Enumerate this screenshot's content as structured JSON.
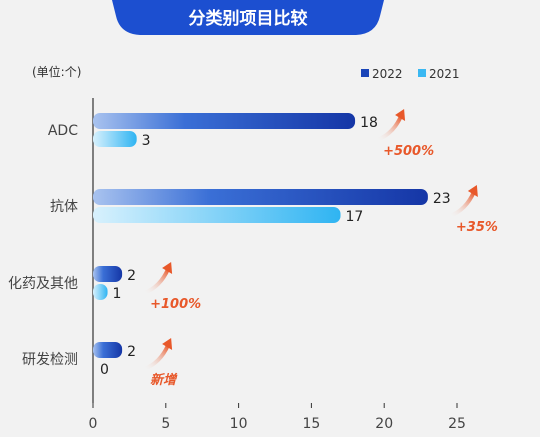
{
  "title": "分类别项目比较",
  "unit_label": "(单位:个)",
  "colors": {
    "series_2022": "#1a44b8",
    "series_2021": "#3ab8f2",
    "title_banner": "#1c4fd0",
    "growth": "#e8582a"
  },
  "chart_data": {
    "type": "bar",
    "orientation": "horizontal",
    "categories": [
      "ADC",
      "抗体",
      "化药及其他",
      "研发检测"
    ],
    "series": [
      {
        "name": "2022",
        "values": [
          18,
          23,
          2,
          2
        ]
      },
      {
        "name": "2021",
        "values": [
          3,
          17,
          1,
          0
        ]
      }
    ],
    "growth_labels": [
      "+500%",
      "+35%",
      "+100%",
      "新增"
    ],
    "xlim": [
      0,
      25
    ],
    "xticks": [
      0,
      5,
      10,
      15,
      20,
      25
    ],
    "legend_position": "top-right",
    "grid": false
  }
}
